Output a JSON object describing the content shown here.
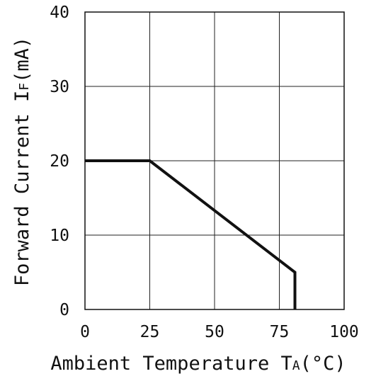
{
  "chart_data": {
    "type": "line",
    "title": "",
    "xlabel": {
      "main": "Ambient Temperature T",
      "sub": "A",
      "unit": "(°C)"
    },
    "ylabel": {
      "main": "Forward Current I",
      "sub": "F",
      "unit": "(mA)"
    },
    "xlim": [
      0,
      100
    ],
    "ylim": [
      0,
      40
    ],
    "x_ticks": [
      "0",
      "25",
      "50",
      "75",
      "100"
    ],
    "y_ticks": [
      "0",
      "10",
      "20",
      "30",
      "40"
    ],
    "grid": true,
    "series": [
      {
        "points": [
          {
            "x": 0,
            "y": 20
          },
          {
            "x": 25,
            "y": 20
          },
          {
            "x": 81,
            "y": 5
          },
          {
            "x": 81,
            "y": 0
          }
        ]
      }
    ],
    "colors": {
      "line": "#111111",
      "grid": "#222222",
      "frame": "#111111"
    }
  }
}
